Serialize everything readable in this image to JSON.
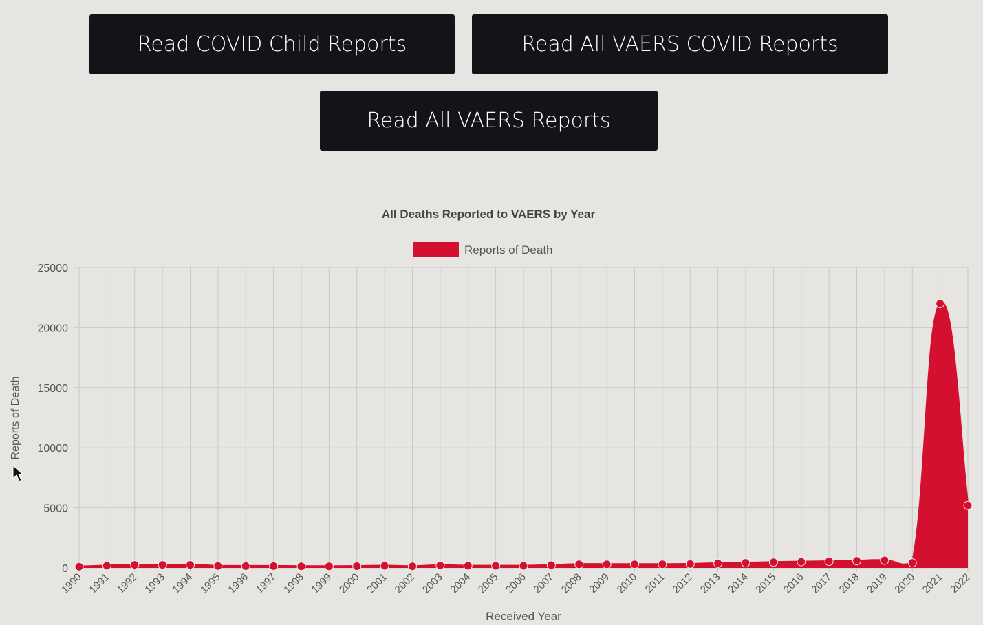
{
  "buttons": {
    "child_reports": "Read COVID Child Reports",
    "covid_reports": "Read All VAERS COVID Reports",
    "all_reports": "Read All VAERS Reports"
  },
  "colors": {
    "series": "#d3102f",
    "button_bg": "#121418",
    "background": "#e6e5e1"
  },
  "chart_data": {
    "type": "area",
    "title": "All Deaths Reported to VAERS by Year",
    "xlabel": "Received Year",
    "ylabel": "Reports of Death",
    "ylim": [
      0,
      25000
    ],
    "yticks": [
      0,
      5000,
      10000,
      15000,
      20000,
      25000
    ],
    "grid": true,
    "legend_position": "top-center",
    "categories": [
      "1990",
      "1991",
      "1992",
      "1993",
      "1994",
      "1995",
      "1996",
      "1997",
      "1998",
      "1999",
      "2000",
      "2001",
      "2002",
      "2003",
      "2004",
      "2005",
      "2006",
      "2007",
      "2008",
      "2009",
      "2010",
      "2011",
      "2012",
      "2013",
      "2014",
      "2015",
      "2016",
      "2017",
      "2018",
      "2019",
      "2020",
      "2021",
      "2022"
    ],
    "series": [
      {
        "name": "Reports of Death",
        "values": [
          100,
          180,
          250,
          250,
          250,
          160,
          150,
          150,
          130,
          130,
          140,
          170,
          130,
          210,
          170,
          170,
          170,
          230,
          300,
          300,
          300,
          300,
          320,
          380,
          420,
          470,
          510,
          540,
          590,
          630,
          420,
          22000,
          5200
        ]
      }
    ]
  }
}
